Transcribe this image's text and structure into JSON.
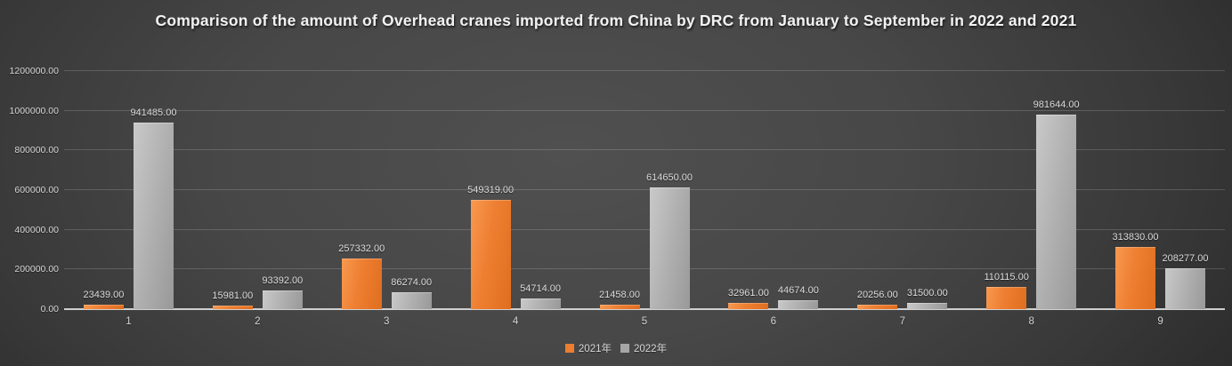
{
  "chart_data": {
    "type": "bar",
    "title": "Comparison of the amount of Overhead cranes imported from China by DRC from January to September in 2022 and 2021",
    "categories": [
      "1",
      "2",
      "3",
      "4",
      "5",
      "6",
      "7",
      "8",
      "9"
    ],
    "series": [
      {
        "name": "2021年",
        "color": "#ED7D31",
        "values": [
          23439,
          15981,
          257332,
          549319,
          21458,
          32961,
          20256,
          110115,
          313830
        ],
        "value_labels": [
          "23439.00",
          "15981.00",
          "257332.00",
          "549319.00",
          "21458.00",
          "32961.00",
          "20256.00",
          "110115.00",
          "313830.00"
        ]
      },
      {
        "name": "2022年",
        "color": "#A6A6A6",
        "values": [
          941485,
          93392,
          86274,
          54714,
          614650,
          44674,
          31500,
          981644,
          208277
        ],
        "value_labels": [
          "941485.00",
          "93392.00",
          "86274.00",
          "54714.00",
          "614650.00",
          "44674.00",
          "31500.00",
          "981644.00",
          "208277.00"
        ]
      }
    ],
    "ylim": [
      0,
      1200000
    ],
    "ytick_step": 200000,
    "ytick_labels": [
      "0.00",
      "200000.00",
      "400000.00",
      "600000.00",
      "800000.00",
      "1000000.00",
      "1200000.00"
    ],
    "grid": true,
    "legend_position": "bottom",
    "data_labels_shown": true
  },
  "colors": {
    "background_center": "#4d4d4d",
    "background_edge": "#262626",
    "gridline": "#6a6a6a",
    "axis_line": "#cfcfcf",
    "text": "#d9d9d9",
    "title_text": "#f2f2f2"
  }
}
